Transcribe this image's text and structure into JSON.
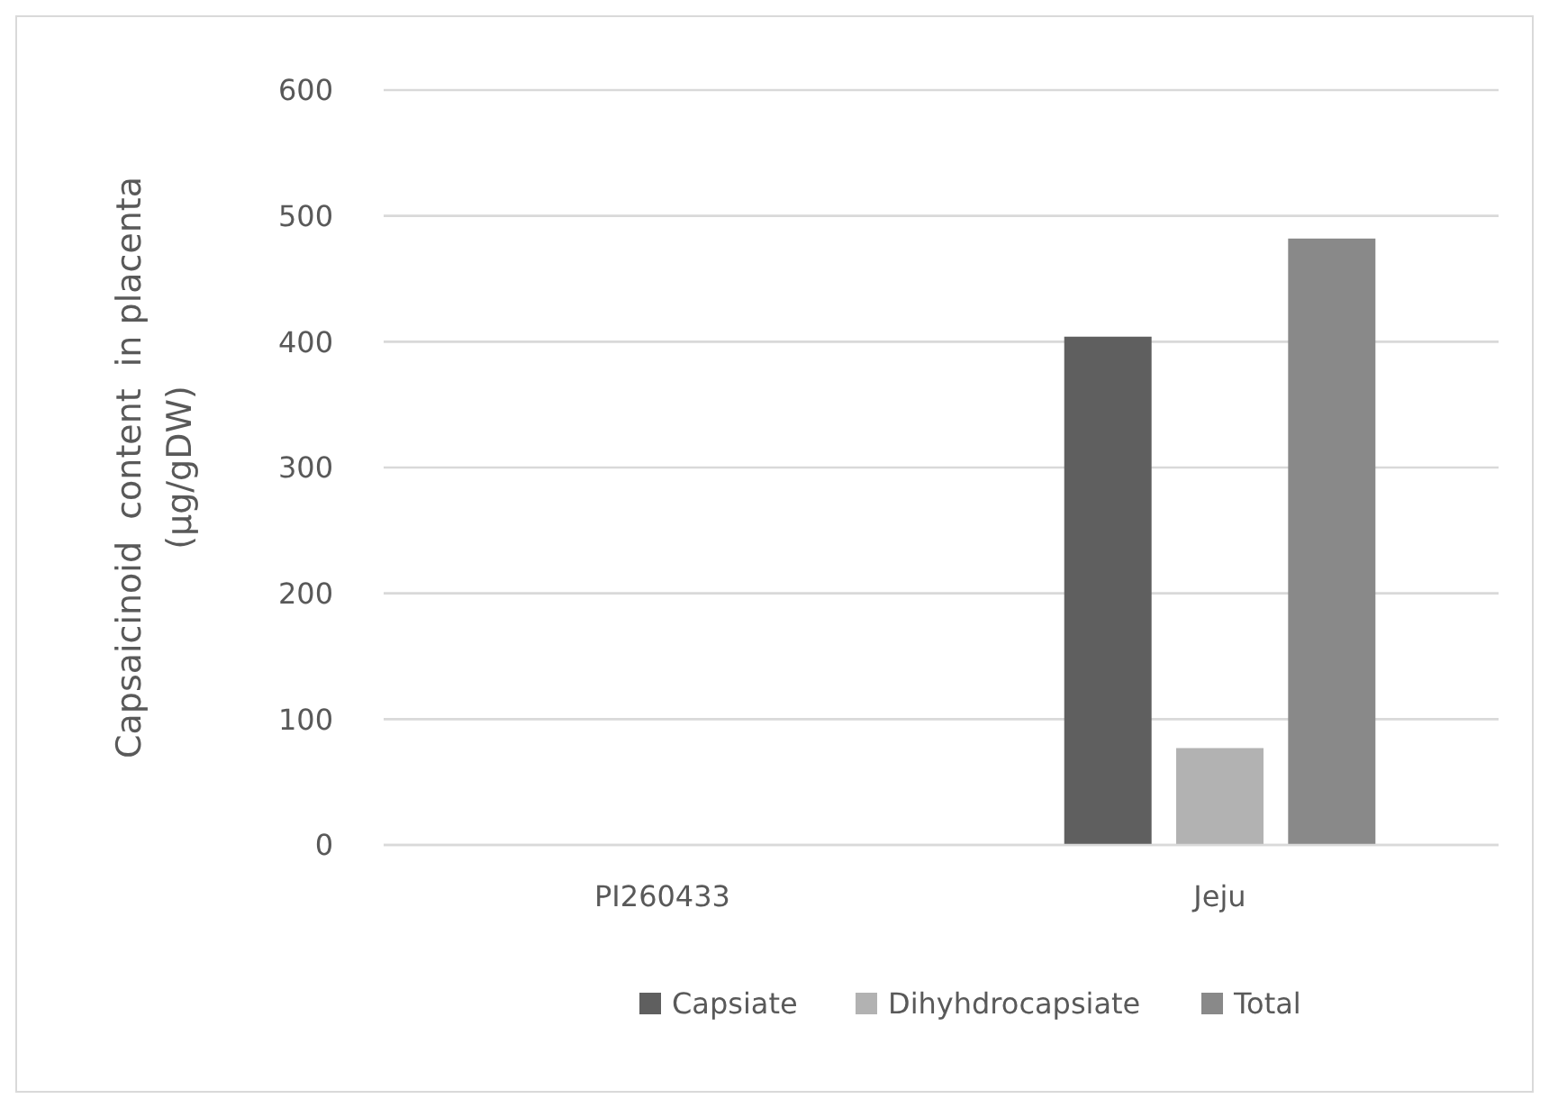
{
  "chart_data": {
    "type": "bar",
    "ylabel": "Capsaicinoid  content  in placenta\n(µg/gDW)",
    "categories": [
      "PI260433",
      "Jeju"
    ],
    "series": [
      {
        "name": "Capsiate",
        "color": "#5f5f5f",
        "values": [
          0,
          404
        ]
      },
      {
        "name": "Dihyhdrocapsiate",
        "color": "#b2b2b2",
        "values": [
          0,
          77
        ]
      },
      {
        "name": "Total",
        "color": "#898989",
        "values": [
          0,
          482
        ]
      }
    ],
    "ylim": [
      0,
      600
    ],
    "yticks": [
      0,
      100,
      200,
      300,
      400,
      500,
      600
    ],
    "grid": "y",
    "legend": "bottom"
  }
}
